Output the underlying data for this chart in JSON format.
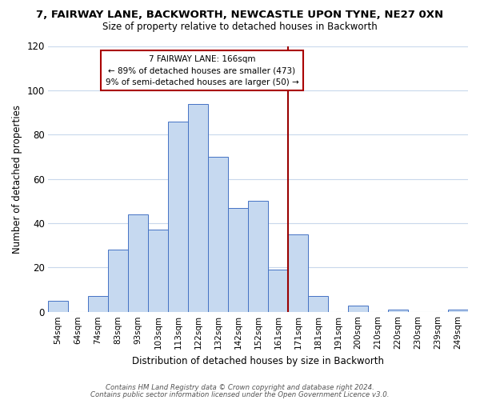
{
  "title": "7, FAIRWAY LANE, BACKWORTH, NEWCASTLE UPON TYNE, NE27 0XN",
  "subtitle": "Size of property relative to detached houses in Backworth",
  "xlabel": "Distribution of detached houses by size in Backworth",
  "ylabel": "Number of detached properties",
  "bar_labels": [
    "54sqm",
    "64sqm",
    "74sqm",
    "83sqm",
    "93sqm",
    "103sqm",
    "113sqm",
    "122sqm",
    "132sqm",
    "142sqm",
    "152sqm",
    "161sqm",
    "171sqm",
    "181sqm",
    "191sqm",
    "200sqm",
    "210sqm",
    "220sqm",
    "230sqm",
    "239sqm",
    "249sqm"
  ],
  "bar_heights": [
    5,
    0,
    7,
    28,
    44,
    37,
    86,
    94,
    70,
    47,
    50,
    19,
    35,
    7,
    0,
    3,
    0,
    1,
    0,
    0,
    1
  ],
  "bar_color": "#c6d9f0",
  "bar_edge_color": "#4472c4",
  "vline_x": 11.5,
  "vline_color": "#990000",
  "annotation_line1": "7 FAIRWAY LANE: 166sqm",
  "annotation_line2": "← 89% of detached houses are smaller (473)",
  "annotation_line3": "9% of semi-detached houses are larger (50) →",
  "annotation_box_color": "#ffffff",
  "annotation_box_edge_color": "#aa0000",
  "ylim": [
    0,
    120
  ],
  "yticks": [
    0,
    20,
    40,
    60,
    80,
    100,
    120
  ],
  "footer_line1": "Contains HM Land Registry data © Crown copyright and database right 2024.",
  "footer_line2": "Contains public sector information licensed under the Open Government Licence v3.0.",
  "background_color": "#ffffff",
  "grid_color": "#c8d8ec"
}
